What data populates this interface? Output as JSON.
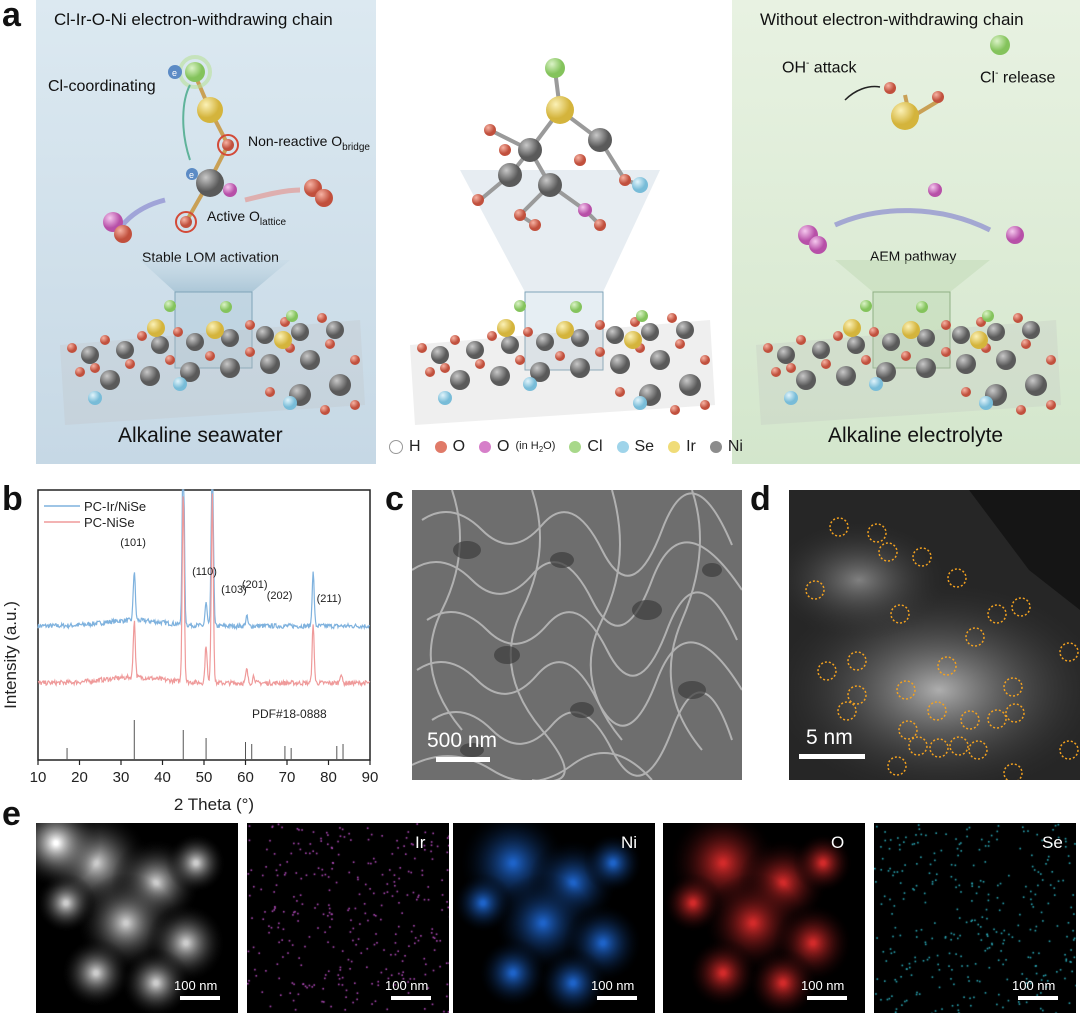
{
  "panel_a": {
    "label": "a",
    "left": {
      "title": "Cl-Ir-O-Ni electron-withdrawing chain",
      "cl_coordinating": "Cl-coordinating",
      "electron_label": "e",
      "non_reactive": "Non-reactive O",
      "non_reactive_sub": "bridge",
      "active": "Active O",
      "active_sub": "lattice",
      "stable_lom": "Stable LOM activation",
      "bottom": "Alkaline seawater",
      "background_color": "#d6e6f0"
    },
    "right": {
      "title": "Without electron-withdrawing chain",
      "oh_attack": "OH",
      "oh_sup": "-",
      "oh_attack_suffix": " attack",
      "cl_release": "Cl",
      "cl_sup": "-",
      "cl_release_suffix": " release",
      "aem": "AEM pathway",
      "bottom": "Alkaline electrolyte",
      "background_color": "#e3efdd"
    },
    "legend": [
      {
        "symbol": "H",
        "icon": "white-sphere-icon",
        "color": "#ffffff"
      },
      {
        "symbol": "O",
        "icon": "salmon-sphere-icon",
        "color": "#e07a68"
      },
      {
        "symbol": "O",
        "suffix": "(in H",
        "suffix_sub": "2",
        "suffix_end": "O)",
        "icon": "pink-sphere-icon",
        "color": "#d67fc9"
      },
      {
        "symbol": "Cl",
        "icon": "green-sphere-icon",
        "color": "#a8d88a"
      },
      {
        "symbol": "Se",
        "icon": "cyan-sphere-icon",
        "color": "#9fd4ea"
      },
      {
        "symbol": "Ir",
        "icon": "yellow-sphere-icon",
        "color": "#f0dc78"
      },
      {
        "symbol": "Ni",
        "icon": "gray-sphere-icon",
        "color": "#8c8c8c"
      }
    ]
  },
  "panel_b": {
    "label": "b",
    "chart_data": {
      "type": "line",
      "xlabel": "2 Theta (°)",
      "ylabel": "Intensity (a.u.)",
      "xlim": [
        10,
        90
      ],
      "xticks": [
        10,
        20,
        30,
        40,
        50,
        60,
        70,
        80,
        90
      ],
      "series": [
        {
          "name": "PC-Ir/NiSe",
          "color": "#7fb2de",
          "baseline": 0.58,
          "peaks": [
            [
              33.2,
              0.26
            ],
            [
              45.0,
              1.0
            ],
            [
              50.5,
              0.12
            ],
            [
              52.0,
              1.0
            ],
            [
              60.3,
              0.05
            ],
            [
              76.3,
              0.28
            ]
          ]
        },
        {
          "name": "PC-NiSe",
          "color": "#ef9a9a",
          "baseline": 0.3,
          "peaks": [
            [
              33.2,
              0.3
            ],
            [
              45.0,
              1.0
            ],
            [
              50.5,
              0.2
            ],
            [
              52.0,
              1.0
            ],
            [
              60.3,
              0.07
            ],
            [
              62.0,
              0.04
            ],
            [
              76.3,
              0.3
            ],
            [
              83.0,
              0.05
            ]
          ]
        }
      ],
      "peak_labels": [
        {
          "text": "(101)",
          "x": 33.2
        },
        {
          "text": "(110)",
          "x": 50.5
        },
        {
          "text": "(103)",
          "x": 57.5
        },
        {
          "text": "(201)",
          "x": 62.5
        },
        {
          "text": "(202)",
          "x": 68.5
        },
        {
          "text": "(211)",
          "x": 80.5
        }
      ],
      "reference": {
        "label": "PDF#18-0888",
        "lines": [
          [
            17.0,
            0.3
          ],
          [
            33.2,
            1.0
          ],
          [
            45.0,
            0.75
          ],
          [
            50.5,
            0.55
          ],
          [
            60.0,
            0.45
          ],
          [
            61.5,
            0.4
          ],
          [
            69.5,
            0.35
          ],
          [
            71.0,
            0.3
          ],
          [
            82.0,
            0.35
          ],
          [
            83.5,
            0.4
          ]
        ]
      }
    }
  },
  "panel_c": {
    "label": "c",
    "scale": "500 nm"
  },
  "panel_d": {
    "label": "d",
    "scale": "5 nm"
  },
  "panel_e": {
    "label": "e",
    "maps": [
      {
        "element": "",
        "scale": "100 nm",
        "color": "#cccccc"
      },
      {
        "element": "Ir",
        "scale": "100 nm",
        "color": "#b04ab8"
      },
      {
        "element": "Ni",
        "scale": "100 nm",
        "color": "#1e63c8"
      },
      {
        "element": "O",
        "scale": "100 nm",
        "color": "#d22a2a"
      },
      {
        "element": "Se",
        "scale": "100 nm",
        "color": "#2aa6b4"
      }
    ]
  }
}
